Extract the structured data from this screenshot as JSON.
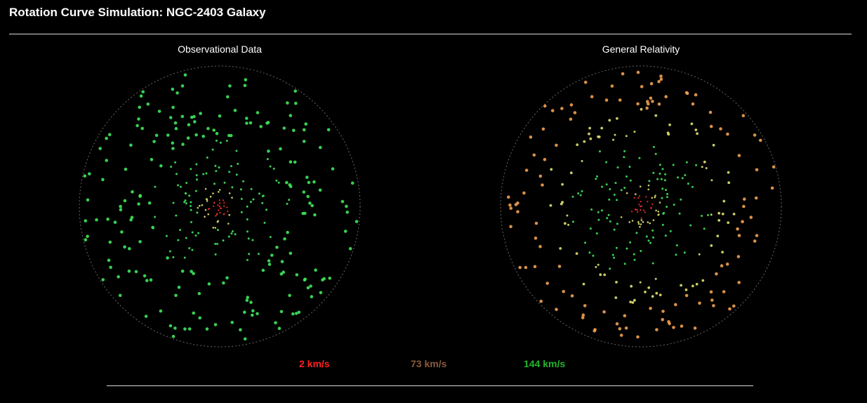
{
  "header": {
    "title": "Rotation Curve Simulation: NGC-2403 Galaxy"
  },
  "panels": [
    {
      "id": "observational",
      "title": "Observational Data",
      "model": "flat"
    },
    {
      "id": "general-relativity",
      "title": "General Relativity",
      "model": "keplerian-excess"
    }
  ],
  "legend": {
    "low": {
      "label": "2 km/s",
      "color": "#ff2020"
    },
    "mid": {
      "label": "73 km/s",
      "color": "#8a5a3a"
    },
    "high": {
      "label": "144 km/s",
      "color": "#22b52a"
    }
  },
  "colors": {
    "background": "#000000",
    "boundary": "#666666",
    "star_inner": "#ff3030",
    "star_mid": "#e0e070",
    "star_outer_green": "#3ee65a",
    "star_outer_orange": "#f0a050"
  }
}
